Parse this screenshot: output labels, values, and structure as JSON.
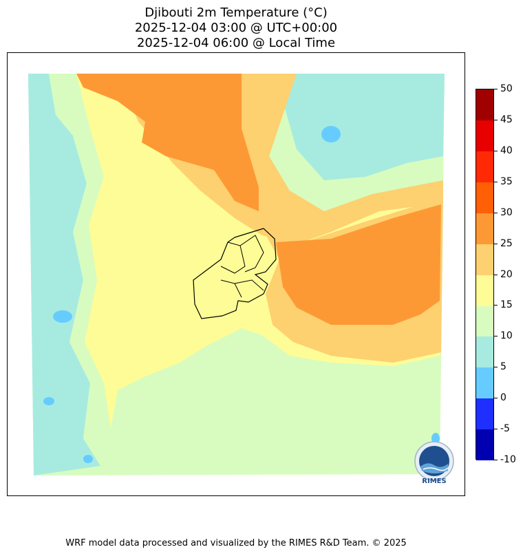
{
  "title": {
    "line1": "Djibouti 2m Temperature (°C)",
    "line2": "2025-12-04 03:00 @ UTC+00:00",
    "line3": "2025-12-04 06:00 @ Local Time"
  },
  "colorbar": {
    "ticks": [
      "50",
      "45",
      "40",
      "35",
      "30",
      "25",
      "20",
      "15",
      "10",
      "5",
      "0",
      "-5",
      "-10"
    ],
    "levels": [
      {
        "range": "-10 to -5",
        "color": "#0000b0"
      },
      {
        "range": "-5 to 0",
        "color": "#1f2fff"
      },
      {
        "range": "0 to 5",
        "color": "#66ccff"
      },
      {
        "range": "5 to 10",
        "color": "#a7ebe0"
      },
      {
        "range": "10 to 15",
        "color": "#d8fcc0"
      },
      {
        "range": "15 to 20",
        "color": "#fefc96"
      },
      {
        "range": "20 to 25",
        "color": "#fdd070"
      },
      {
        "range": "25 to 30",
        "color": "#fd9935"
      },
      {
        "range": "30 to 35",
        "color": "#ff5f05"
      },
      {
        "range": "35 to 40",
        "color": "#ff2a05"
      },
      {
        "range": "40 to 45",
        "color": "#e80000"
      },
      {
        "range": "45 to 50",
        "color": "#a00000"
      }
    ]
  },
  "logo": {
    "text": "RIMES",
    "icon": "rimes-logo-icon"
  },
  "footer": "WRF model data processed and visualized by the RIMES R&D Team. © 2025"
}
